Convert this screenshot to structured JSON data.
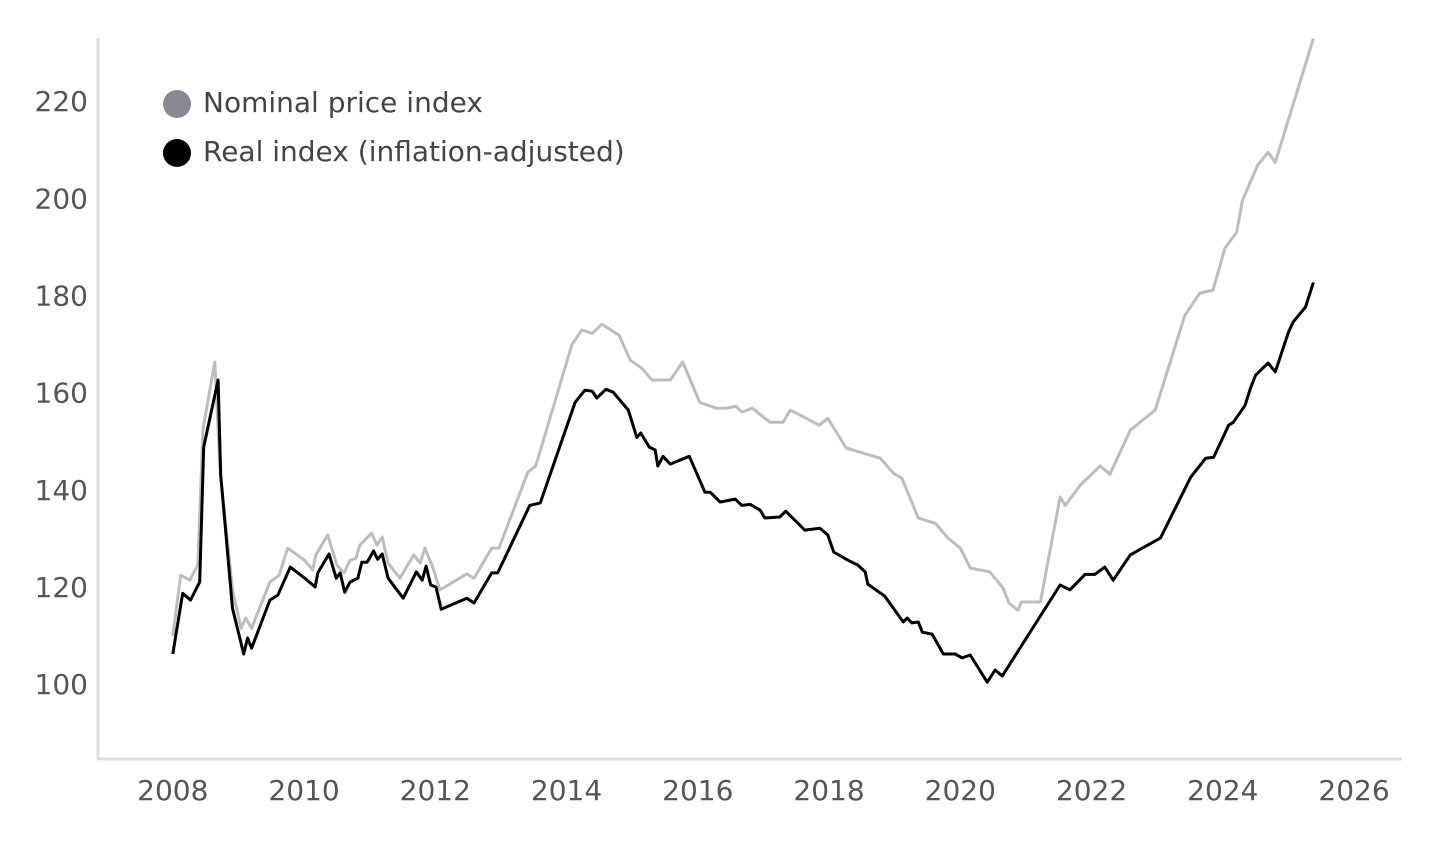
{
  "chart_data": {
    "type": "line",
    "xlim": [
      2006.86,
      2026.7
    ],
    "ylim": [
      85.2,
      233.4
    ],
    "xticks": [
      2008,
      2010,
      2012,
      2014,
      2016,
      2018,
      2020,
      2022,
      2024,
      2026
    ],
    "yticks": [
      100,
      120,
      140,
      160,
      180,
      200,
      220
    ],
    "grid": false,
    "legend": "upper left",
    "series": [
      {
        "name": "Nominal price index",
        "color": "#bdbdbd",
        "legend_color": "#8a8894",
        "x": [
          2008.0,
          2008.12,
          2008.26,
          2008.38,
          2008.46,
          2008.64,
          2008.72,
          2008.91,
          2009.04,
          2009.11,
          2009.2,
          2009.48,
          2009.62,
          2009.75,
          2010.01,
          2010.13,
          2010.18,
          2010.36,
          2010.5,
          2010.61,
          2010.7,
          2010.79,
          2010.85,
          2011.03,
          2011.11,
          2011.19,
          2011.28,
          2011.46,
          2011.67,
          2011.77,
          2011.84,
          2011.96,
          2012.07,
          2012.48,
          2012.59,
          2012.86,
          2012.97,
          2013.41,
          2013.53,
          2014.08,
          2014.23,
          2014.39,
          2014.54,
          2014.8,
          2014.97,
          2015.15,
          2015.3,
          2015.42,
          2015.58,
          2015.77,
          2016.03,
          2016.28,
          2016.43,
          2016.58,
          2016.67,
          2016.83,
          2017.1,
          2017.3,
          2017.41,
          2017.85,
          2017.98,
          2018.11,
          2018.26,
          2018.59,
          2018.78,
          2018.98,
          2019.11,
          2019.36,
          2019.62,
          2019.81,
          2020.0,
          2020.15,
          2020.45,
          2020.65,
          2020.74,
          2020.88,
          2020.93,
          2021.22,
          2021.52,
          2021.6,
          2021.83,
          2022.13,
          2022.28,
          2022.59,
          2022.97,
          2023.42,
          2023.65,
          2023.85,
          2024.03,
          2024.21,
          2024.3,
          2024.53,
          2024.69,
          2024.8,
          2025.38
        ],
        "values": [
          110.3,
          122.8,
          121.8,
          124.9,
          153.0,
          166.7,
          144.4,
          119.8,
          111.9,
          114.0,
          111.9,
          121.4,
          122.8,
          128.4,
          125.9,
          123.9,
          127.0,
          131.1,
          124.9,
          123.3,
          125.9,
          126.3,
          129.0,
          131.5,
          129.0,
          130.7,
          125.3,
          122.2,
          127.0,
          125.3,
          128.4,
          124.5,
          119.8,
          123.1,
          122.2,
          128.4,
          128.4,
          144.0,
          145.3,
          170.2,
          173.3,
          172.6,
          174.5,
          172.2,
          167.1,
          165.4,
          163.0,
          163.0,
          163.0,
          166.7,
          158.4,
          157.2,
          157.2,
          157.6,
          156.4,
          157.2,
          154.3,
          154.3,
          156.8,
          153.7,
          155.1,
          152.3,
          149.0,
          147.7,
          146.9,
          143.8,
          142.8,
          134.6,
          133.5,
          130.5,
          128.4,
          124.3,
          123.5,
          120.2,
          117.1,
          115.6,
          117.3,
          117.3,
          138.9,
          137.2,
          141.4,
          145.3,
          143.6,
          152.7,
          156.8,
          176.3,
          180.9,
          181.5,
          190.1,
          193.4,
          200.0,
          207.2,
          209.9,
          207.8,
          233.3
        ]
      },
      {
        "name": "Real index (inflation-adjusted)",
        "color": "#000000",
        "legend_color": "#000000",
        "x": [
          2008.0,
          2008.15,
          2008.27,
          2008.41,
          2008.47,
          2008.69,
          2008.73,
          2008.91,
          2009.08,
          2009.14,
          2009.2,
          2009.48,
          2009.6,
          2009.79,
          2010.01,
          2010.17,
          2010.21,
          2010.38,
          2010.49,
          2010.55,
          2010.62,
          2010.7,
          2010.82,
          2010.88,
          2010.96,
          2011.06,
          2011.12,
          2011.19,
          2011.28,
          2011.51,
          2011.71,
          2011.8,
          2011.86,
          2011.93,
          2012.01,
          2012.09,
          2012.48,
          2012.59,
          2012.86,
          2012.95,
          2013.44,
          2013.6,
          2014.13,
          2014.28,
          2014.39,
          2014.46,
          2014.6,
          2014.71,
          2014.94,
          2015.07,
          2015.13,
          2015.26,
          2015.35,
          2015.39,
          2015.47,
          2015.58,
          2015.87,
          2016.11,
          2016.19,
          2016.34,
          2016.57,
          2016.67,
          2016.8,
          2016.95,
          2017.02,
          2017.25,
          2017.34,
          2017.63,
          2017.86,
          2017.98,
          2018.07,
          2018.29,
          2018.44,
          2018.55,
          2018.59,
          2018.85,
          2019.13,
          2019.19,
          2019.26,
          2019.36,
          2019.42,
          2019.57,
          2019.74,
          2019.92,
          2020.03,
          2020.15,
          2020.41,
          2020.53,
          2020.64,
          2021.52,
          2021.67,
          2021.9,
          2022.05,
          2022.2,
          2022.33,
          2022.59,
          2023.05,
          2023.51,
          2023.74,
          2023.86,
          2024.09,
          2024.16,
          2024.34,
          2024.42,
          2024.5,
          2024.69,
          2024.8,
          2025.0,
          2025.07,
          2025.26,
          2025.38
        ],
        "values": [
          106.6,
          119.1,
          117.7,
          121.4,
          149.2,
          163.0,
          143.4,
          116.0,
          106.6,
          109.9,
          107.8,
          117.7,
          118.7,
          124.5,
          122.2,
          120.4,
          123.3,
          127.2,
          122.2,
          123.3,
          119.3,
          121.4,
          122.2,
          125.5,
          125.5,
          127.8,
          126.1,
          127.2,
          122.2,
          118.1,
          123.5,
          121.8,
          124.7,
          120.8,
          120.4,
          115.8,
          118.1,
          117.1,
          123.3,
          123.3,
          137.2,
          137.7,
          158.4,
          160.9,
          160.7,
          159.3,
          161.1,
          160.5,
          156.8,
          151.2,
          152.1,
          149.2,
          148.6,
          145.3,
          147.3,
          145.7,
          147.3,
          139.9,
          139.9,
          137.9,
          138.5,
          137.2,
          137.4,
          136.2,
          134.6,
          134.8,
          136.0,
          132.1,
          132.5,
          131.1,
          127.6,
          125.9,
          124.9,
          123.5,
          121.0,
          118.5,
          113.2,
          114.0,
          113.0,
          113.2,
          111.1,
          110.7,
          106.6,
          106.6,
          105.8,
          106.4,
          100.8,
          103.3,
          102.1,
          120.8,
          119.8,
          123.0,
          123.0,
          124.5,
          121.8,
          127.0,
          130.5,
          143.0,
          146.9,
          147.1,
          153.7,
          154.3,
          157.8,
          161.3,
          164.0,
          166.5,
          164.7,
          172.8,
          174.9,
          178.0,
          183.1
        ]
      }
    ]
  }
}
